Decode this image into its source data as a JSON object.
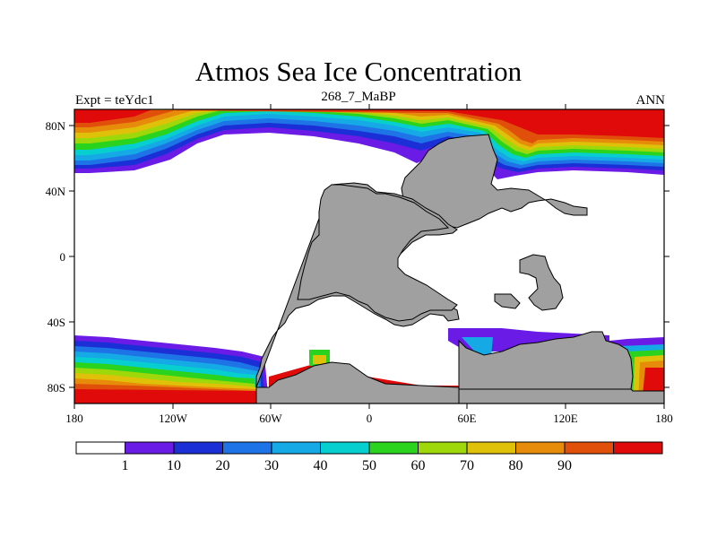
{
  "header": {
    "title": "Atmos Sea Ice Concentration",
    "subtitle": "268_7_MaBP",
    "left": "Expt = teYdc1",
    "right": "ANN"
  },
  "axes": {
    "lon_ticks": [
      "180",
      "120W",
      "60W",
      "0",
      "60E",
      "120E",
      "180"
    ],
    "lat_ticks": [
      "80N",
      "40N",
      "0",
      "40S",
      "80S"
    ]
  },
  "colorbar": {
    "levels": [
      "1",
      "10",
      "20",
      "30",
      "40",
      "50",
      "60",
      "70",
      "80",
      "90"
    ],
    "colors": [
      "#ffffff",
      "#6a1be6",
      "#1b2fd6",
      "#1e73e6",
      "#15a9e6",
      "#08cfcf",
      "#2ad31e",
      "#9fd80a",
      "#e0c10a",
      "#e68c0a",
      "#e0500a",
      "#e00a0a"
    ]
  }
}
